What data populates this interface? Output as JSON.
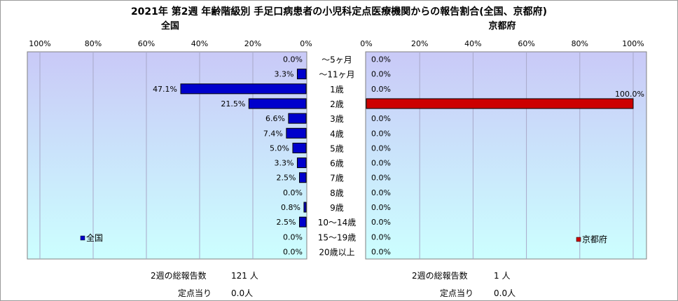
{
  "title": "2021年 第2週 年齢階級別 手足口病患者の小児科定点医療機関からの報告割合(全国、京都府)",
  "colors": {
    "national_bar": "#0000cc",
    "kyoto_bar": "#cc0000",
    "plot_bg_top": "#c9c9f7",
    "plot_bg_bottom": "#ccffff"
  },
  "chart_data": [
    {
      "type": "bar",
      "orientation": "horizontal",
      "direction": "right-to-left",
      "subtitle": "全国",
      "legend": "全国",
      "legend_position": "bottom-left",
      "categories": [
        "～5ヶ月",
        "～11ヶ月",
        "1歳",
        "2歳",
        "3歳",
        "4歳",
        "5歳",
        "6歳",
        "7歳",
        "8歳",
        "9歳",
        "10～14歳",
        "15～19歳",
        "20歳以上"
      ],
      "values": [
        0.0,
        3.3,
        47.1,
        21.5,
        6.6,
        7.4,
        5.0,
        3.3,
        2.5,
        0.0,
        0.8,
        2.5,
        0.0,
        0.0
      ],
      "value_labels": [
        "0.0%",
        "3.3%",
        "47.1%",
        "21.5%",
        "6.6%",
        "7.4%",
        "5.0%",
        "3.3%",
        "2.5%",
        "0.0%",
        "0.8%",
        "2.5%",
        "0.0%",
        "0.0%"
      ],
      "xlim": [
        0,
        100
      ],
      "ticks": [
        "100%",
        "80%",
        "60%",
        "40%",
        "20%",
        "0%"
      ],
      "grid": true
    },
    {
      "type": "bar",
      "orientation": "horizontal",
      "direction": "left-to-right",
      "subtitle": "京都府",
      "legend": "京都府",
      "legend_position": "bottom-right",
      "categories": [
        "～5ヶ月",
        "～11ヶ月",
        "1歳",
        "2歳",
        "3歳",
        "4歳",
        "5歳",
        "6歳",
        "7歳",
        "8歳",
        "9歳",
        "10～14歳",
        "15～19歳",
        "20歳以上"
      ],
      "values": [
        0.0,
        0.0,
        0.0,
        100.0,
        0.0,
        0.0,
        0.0,
        0.0,
        0.0,
        0.0,
        0.0,
        0.0,
        0.0,
        0.0
      ],
      "value_labels": [
        "0.0%",
        "0.0%",
        "0.0%",
        "100.0%",
        "0.0%",
        "0.0%",
        "0.0%",
        "0.0%",
        "0.0%",
        "0.0%",
        "0.0%",
        "0.0%",
        "0.0%",
        "0.0%"
      ],
      "xlim": [
        0,
        100
      ],
      "ticks": [
        "0%",
        "20%",
        "40%",
        "60%",
        "80%",
        "100%"
      ],
      "grid": true
    }
  ],
  "footer": {
    "national": {
      "reports_label": "2週の総報告数",
      "reports_value": "121 人",
      "per_site_label": "定点当り",
      "per_site_value": "0.0人"
    },
    "kyoto": {
      "reports_label": "2週の総報告数",
      "reports_value": "1 人",
      "per_site_label": "定点当り",
      "per_site_value": "0.0人"
    }
  }
}
